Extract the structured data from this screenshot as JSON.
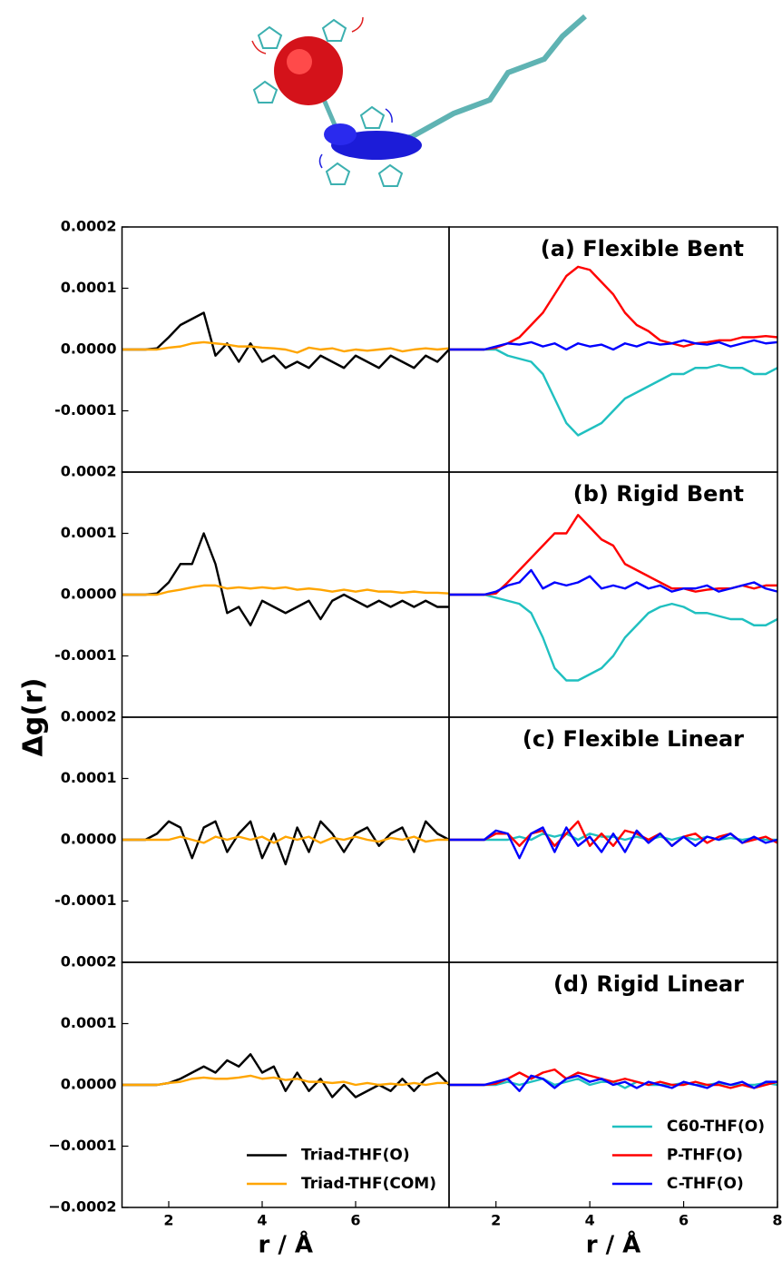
{
  "chart_data": [
    {
      "type": "line",
      "y_label": "Δg(r)",
      "x": [
        1,
        1.25,
        1.5,
        1.75,
        2,
        2.25,
        2.5,
        2.75,
        3,
        3.25,
        3.5,
        3.75,
        4,
        4.25,
        4.5,
        4.75,
        5,
        5.25,
        5.5,
        5.75,
        6,
        6.25,
        6.5,
        6.75,
        7,
        7.25,
        7.5,
        7.75,
        8
      ],
      "xlim": [
        1,
        8
      ],
      "ylim": [
        -0.0002,
        0.0002
      ],
      "yticks": [
        {
          "value": 0.0002,
          "label": "0.0002"
        },
        {
          "value": 0.0001,
          "label": "0.0001"
        },
        {
          "value": 0,
          "label": "0.0000"
        },
        {
          "value": -0.0001,
          "label": "-0.0001"
        }
      ],
      "series": [
        {
          "color": "#000000",
          "values": [
            0,
            0,
            0,
            2e-06,
            2e-05,
            4e-05,
            5e-05,
            6e-05,
            -1e-05,
            1e-05,
            -2e-05,
            1e-05,
            -2e-05,
            -1e-05,
            -3e-05,
            -2e-05,
            -3e-05,
            -1e-05,
            -2e-05,
            -3e-05,
            -1e-05,
            -2e-05,
            -3e-05,
            -1e-05,
            -2e-05,
            -3e-05,
            -1e-05,
            -2e-05,
            0
          ]
        },
        {
          "color": "#ffa500",
          "values": [
            0,
            0,
            0,
            0,
            3e-06,
            5e-06,
            1e-05,
            1.2e-05,
            1e-05,
            8e-06,
            5e-06,
            5e-06,
            3e-06,
            2e-06,
            0,
            -5e-06,
            3e-06,
            0,
            2e-06,
            -3e-06,
            0,
            -2e-06,
            0,
            2e-06,
            -3e-06,
            0,
            2e-06,
            0,
            2e-06
          ]
        }
      ]
    },
    {
      "type": "line",
      "title": "(a) Flexible Bent",
      "x": [
        1,
        1.25,
        1.5,
        1.75,
        2,
        2.25,
        2.5,
        2.75,
        3,
        3.25,
        3.5,
        3.75,
        4,
        4.25,
        4.5,
        4.75,
        5,
        5.25,
        5.5,
        5.75,
        6,
        6.25,
        6.5,
        6.75,
        7,
        7.25,
        7.5,
        7.75,
        8
      ],
      "xlim": [
        1,
        8
      ],
      "ylim": [
        -0.0002,
        0.0002
      ],
      "series": [
        {
          "color": "#20c0c0",
          "values": [
            0,
            0,
            0,
            0,
            0,
            -1e-05,
            -1.5e-05,
            -2e-05,
            -4e-05,
            -8e-05,
            -0.00012,
            -0.00014,
            -0.00013,
            -0.00012,
            -0.0001,
            -8e-05,
            -7e-05,
            -6e-05,
            -5e-05,
            -4e-05,
            -4e-05,
            -3e-05,
            -3e-05,
            -2.5e-05,
            -3e-05,
            -3e-05,
            -4e-05,
            -4e-05,
            -3e-05
          ]
        },
        {
          "color": "#ff0000",
          "values": [
            0,
            0,
            0,
            0,
            3e-06,
            1e-05,
            2e-05,
            4e-05,
            6e-05,
            9e-05,
            0.00012,
            0.000135,
            0.00013,
            0.00011,
            9e-05,
            6e-05,
            4e-05,
            3e-05,
            1.5e-05,
            1e-05,
            5e-06,
            1e-05,
            1.2e-05,
            1.5e-05,
            1.5e-05,
            2e-05,
            2e-05,
            2.2e-05,
            2e-05
          ]
        },
        {
          "color": "#0000ff",
          "values": [
            0,
            0,
            0,
            0,
            5e-06,
            1e-05,
            8e-06,
            1.2e-05,
            5e-06,
            1e-05,
            0,
            1e-05,
            5e-06,
            8e-06,
            0,
            1e-05,
            5e-06,
            1.2e-05,
            8e-06,
            1e-05,
            1.5e-05,
            1e-05,
            8e-06,
            1.2e-05,
            5e-06,
            1e-05,
            1.5e-05,
            1e-05,
            1.2e-05
          ]
        }
      ]
    },
    {
      "type": "line",
      "x": [
        1,
        1.25,
        1.5,
        1.75,
        2,
        2.25,
        2.5,
        2.75,
        3,
        3.25,
        3.5,
        3.75,
        4,
        4.25,
        4.5,
        4.75,
        5,
        5.25,
        5.5,
        5.75,
        6,
        6.25,
        6.5,
        6.75,
        7,
        7.25,
        7.5,
        7.75,
        8
      ],
      "xlim": [
        1,
        8
      ],
      "ylim": [
        -0.0002,
        0.0002
      ],
      "yticks": [
        {
          "value": 0.0002,
          "label": "0.0002"
        },
        {
          "value": 0.0001,
          "label": "0.0001"
        },
        {
          "value": 0,
          "label": "0.0000"
        },
        {
          "value": -0.0001,
          "label": "-0.0001"
        }
      ],
      "series": [
        {
          "color": "#000000",
          "values": [
            0,
            0,
            0,
            2e-06,
            2e-05,
            5e-05,
            5e-05,
            0.0001,
            5e-05,
            -3e-05,
            -2e-05,
            -5e-05,
            -1e-05,
            -2e-05,
            -3e-05,
            -2e-05,
            -1e-05,
            -4e-05,
            -1e-05,
            0,
            -1e-05,
            -2e-05,
            -1e-05,
            -2e-05,
            -1e-05,
            -2e-05,
            -1e-05,
            -2e-05,
            -2e-05
          ]
        },
        {
          "color": "#ffa500",
          "values": [
            0,
            0,
            0,
            0,
            5e-06,
            8e-06,
            1.2e-05,
            1.5e-05,
            1.5e-05,
            1e-05,
            1.2e-05,
            1e-05,
            1.2e-05,
            1e-05,
            1.2e-05,
            8e-06,
            1e-05,
            8e-06,
            5e-06,
            8e-06,
            5e-06,
            8e-06,
            5e-06,
            5e-06,
            3e-06,
            5e-06,
            3e-06,
            3e-06,
            2e-06
          ]
        }
      ]
    },
    {
      "type": "line",
      "title": "(b) Rigid Bent",
      "x": [
        1,
        1.25,
        1.5,
        1.75,
        2,
        2.25,
        2.5,
        2.75,
        3,
        3.25,
        3.5,
        3.75,
        4,
        4.25,
        4.5,
        4.75,
        5,
        5.25,
        5.5,
        5.75,
        6,
        6.25,
        6.5,
        6.75,
        7,
        7.25,
        7.5,
        7.75,
        8
      ],
      "xlim": [
        1,
        8
      ],
      "ylim": [
        -0.0002,
        0.0002
      ],
      "series": [
        {
          "color": "#20c0c0",
          "values": [
            0,
            0,
            0,
            0,
            -5e-06,
            -1e-05,
            -1.5e-05,
            -3e-05,
            -7e-05,
            -0.00012,
            -0.00014,
            -0.00014,
            -0.00013,
            -0.00012,
            -0.0001,
            -7e-05,
            -5e-05,
            -3e-05,
            -2e-05,
            -1.5e-05,
            -2e-05,
            -3e-05,
            -3e-05,
            -3.5e-05,
            -4e-05,
            -4e-05,
            -5e-05,
            -5e-05,
            -4e-05
          ]
        },
        {
          "color": "#ff0000",
          "values": [
            0,
            0,
            0,
            0,
            2e-06,
            2e-05,
            4e-05,
            6e-05,
            8e-05,
            0.0001,
            0.0001,
            0.00013,
            0.00011,
            9e-05,
            8e-05,
            5e-05,
            4e-05,
            3e-05,
            2e-05,
            1e-05,
            1e-05,
            5e-06,
            8e-06,
            1e-05,
            1e-05,
            1.5e-05,
            1e-05,
            1.5e-05,
            1.5e-05
          ]
        },
        {
          "color": "#0000ff",
          "values": [
            0,
            0,
            0,
            0,
            5e-06,
            1.5e-05,
            2e-05,
            4e-05,
            1e-05,
            2e-05,
            1.5e-05,
            2e-05,
            3e-05,
            1e-05,
            1.5e-05,
            1e-05,
            2e-05,
            1e-05,
            1.5e-05,
            5e-06,
            1e-05,
            1e-05,
            1.5e-05,
            5e-06,
            1e-05,
            1.5e-05,
            2e-05,
            1e-05,
            5e-06
          ]
        }
      ]
    },
    {
      "type": "line",
      "x": [
        1,
        1.25,
        1.5,
        1.75,
        2,
        2.25,
        2.5,
        2.75,
        3,
        3.25,
        3.5,
        3.75,
        4,
        4.25,
        4.5,
        4.75,
        5,
        5.25,
        5.5,
        5.75,
        6,
        6.25,
        6.5,
        6.75,
        7,
        7.25,
        7.5,
        7.75,
        8
      ],
      "xlim": [
        1,
        8
      ],
      "ylim": [
        -0.0002,
        0.0002
      ],
      "yticks": [
        {
          "value": 0.0002,
          "label": "0.0002"
        },
        {
          "value": 0.0001,
          "label": "0.0001"
        },
        {
          "value": 0,
          "label": "0.0000"
        },
        {
          "value": -0.0001,
          "label": "-0.0001"
        }
      ],
      "series": [
        {
          "color": "#000000",
          "values": [
            0,
            0,
            0,
            1e-05,
            3e-05,
            2e-05,
            -3e-05,
            2e-05,
            3e-05,
            -2e-05,
            1e-05,
            3e-05,
            -3e-05,
            1e-05,
            -4e-05,
            2e-05,
            -2e-05,
            3e-05,
            1e-05,
            -2e-05,
            1e-05,
            2e-05,
            -1e-05,
            1e-05,
            2e-05,
            -2e-05,
            3e-05,
            1e-05,
            0
          ]
        },
        {
          "color": "#ffa500",
          "values": [
            0,
            0,
            0,
            0,
            0,
            5e-06,
            0,
            -5e-06,
            5e-06,
            0,
            5e-06,
            0,
            5e-06,
            -5e-06,
            5e-06,
            0,
            5e-06,
            -5e-06,
            3e-06,
            0,
            5e-06,
            0,
            -3e-06,
            3e-06,
            0,
            5e-06,
            -3e-06,
            0,
            0
          ]
        }
      ]
    },
    {
      "type": "line",
      "title": "(c) Flexible Linear",
      "x": [
        1,
        1.25,
        1.5,
        1.75,
        2,
        2.25,
        2.5,
        2.75,
        3,
        3.25,
        3.5,
        3.75,
        4,
        4.25,
        4.5,
        4.75,
        5,
        5.25,
        5.5,
        5.75,
        6,
        6.25,
        6.5,
        6.75,
        7,
        7.25,
        7.5,
        7.75,
        8
      ],
      "xlim": [
        1,
        8
      ],
      "ylim": [
        -0.0002,
        0.0002
      ],
      "series": [
        {
          "color": "#20c0c0",
          "values": [
            0,
            0,
            0,
            0,
            0,
            0,
            5e-06,
            0,
            1e-05,
            5e-06,
            1e-05,
            0,
            1e-05,
            5e-06,
            5e-06,
            0,
            5e-06,
            0,
            5e-06,
            0,
            5e-06,
            0,
            5e-06,
            0,
            3e-06,
            0,
            3e-06,
            0,
            0
          ]
        },
        {
          "color": "#ff0000",
          "values": [
            0,
            0,
            0,
            0,
            1e-05,
            1e-05,
            -1e-05,
            1e-05,
            1.5e-05,
            -1e-05,
            1e-05,
            3e-05,
            -1e-05,
            1e-05,
            -1e-05,
            1.5e-05,
            1e-05,
            0,
            1e-05,
            -1e-05,
            5e-06,
            1e-05,
            -5e-06,
            5e-06,
            1e-05,
            -5e-06,
            0,
            5e-06,
            -5e-06
          ]
        },
        {
          "color": "#0000ff",
          "values": [
            0,
            0,
            0,
            0,
            1.5e-05,
            1e-05,
            -3e-05,
            1e-05,
            2e-05,
            -2e-05,
            2e-05,
            -1e-05,
            5e-06,
            -2e-05,
            1e-05,
            -2e-05,
            1.5e-05,
            -5e-06,
            1e-05,
            -1e-05,
            5e-06,
            -1e-05,
            5e-06,
            0,
            1e-05,
            -5e-06,
            5e-06,
            -5e-06,
            0
          ]
        }
      ]
    },
    {
      "type": "line",
      "x_label": "r / Å",
      "legend": "lower right",
      "x": [
        1,
        1.25,
        1.5,
        1.75,
        2,
        2.25,
        2.5,
        2.75,
        3,
        3.25,
        3.5,
        3.75,
        4,
        4.25,
        4.5,
        4.75,
        5,
        5.25,
        5.5,
        5.75,
        6,
        6.25,
        6.5,
        6.75,
        7,
        7.25,
        7.5,
        7.75,
        8
      ],
      "xlim": [
        1,
        8
      ],
      "ylim": [
        -0.0002,
        0.0002
      ],
      "xticks": [
        2,
        4,
        6
      ],
      "yticks": [
        {
          "value": 0.0002,
          "label": "0.0002"
        },
        {
          "value": 0.0001,
          "label": "0.0001"
        },
        {
          "value": 0,
          "label": "0.0000"
        },
        {
          "value": -0.0001,
          "label": "−0.0001"
        },
        {
          "value": -0.0002,
          "label": "−0.0002"
        }
      ],
      "series": [
        {
          "name": "Triad-THF(O)",
          "color": "#000000",
          "values": [
            0,
            0,
            0,
            0,
            3e-06,
            1e-05,
            2e-05,
            3e-05,
            2e-05,
            4e-05,
            3e-05,
            5e-05,
            2e-05,
            3e-05,
            -1e-05,
            2e-05,
            -1e-05,
            1e-05,
            -2e-05,
            0,
            -2e-05,
            -1e-05,
            0,
            -1e-05,
            1e-05,
            -1e-05,
            1e-05,
            2e-05,
            0
          ]
        },
        {
          "name": "Triad-THF(COM)",
          "color": "#ffa500",
          "values": [
            0,
            0,
            0,
            0,
            3e-06,
            5e-06,
            1e-05,
            1.2e-05,
            1e-05,
            1e-05,
            1.2e-05,
            1.5e-05,
            1e-05,
            1.2e-05,
            8e-06,
            1e-05,
            5e-06,
            5e-06,
            3e-06,
            5e-06,
            0,
            3e-06,
            0,
            2e-06,
            0,
            3e-06,
            0,
            3e-06,
            3e-06
          ]
        }
      ]
    },
    {
      "type": "line",
      "title": "(d) Rigid Linear",
      "x_label": "r / Å",
      "legend": "lower right",
      "x": [
        1,
        1.25,
        1.5,
        1.75,
        2,
        2.25,
        2.5,
        2.75,
        3,
        3.25,
        3.5,
        3.75,
        4,
        4.25,
        4.5,
        4.75,
        5,
        5.25,
        5.5,
        5.75,
        6,
        6.25,
        6.5,
        6.75,
        7,
        7.25,
        7.5,
        7.75,
        8
      ],
      "xlim": [
        1,
        8
      ],
      "ylim": [
        -0.0002,
        0.0002
      ],
      "xticks": [
        2,
        4,
        6,
        8
      ],
      "series": [
        {
          "name": "C60-THF(O)",
          "color": "#20c0c0",
          "values": [
            0,
            0,
            0,
            0,
            0,
            5e-06,
            0,
            5e-06,
            1e-05,
            0,
            5e-06,
            1e-05,
            0,
            5e-06,
            5e-06,
            -5e-06,
            5e-06,
            0,
            0,
            0,
            3e-06,
            0,
            0,
            3e-06,
            0,
            0,
            0,
            3e-06,
            0
          ]
        },
        {
          "name": "P-THF(O)",
          "color": "#ff0000",
          "values": [
            0,
            0,
            0,
            0,
            2e-06,
            1e-05,
            2e-05,
            1e-05,
            2e-05,
            2.5e-05,
            1e-05,
            2e-05,
            1.5e-05,
            1e-05,
            5e-06,
            1e-05,
            5e-06,
            0,
            5e-06,
            0,
            0,
            5e-06,
            0,
            0,
            -5e-06,
            0,
            -5e-06,
            0,
            5e-06
          ]
        },
        {
          "name": "C-THF(O)",
          "color": "#0000ff",
          "values": [
            0,
            0,
            0,
            0,
            5e-06,
            1e-05,
            -1e-05,
            1.5e-05,
            1e-05,
            -5e-06,
            1e-05,
            1.5e-05,
            5e-06,
            1e-05,
            0,
            5e-06,
            -5e-06,
            5e-06,
            0,
            -5e-06,
            5e-06,
            0,
            -5e-06,
            5e-06,
            0,
            5e-06,
            -5e-06,
            5e-06,
            5e-06
          ]
        }
      ]
    }
  ]
}
